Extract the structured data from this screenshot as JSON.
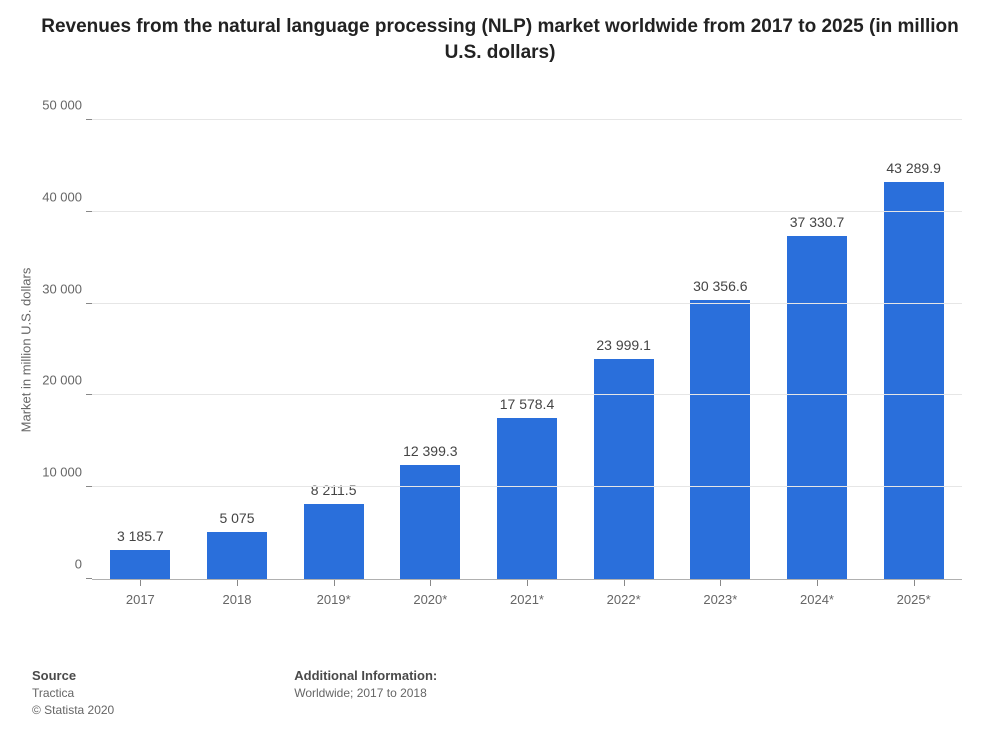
{
  "chart": {
    "type": "bar",
    "title": "Revenues from the natural language processing (NLP) market worldwide from 2017 to 2025 (in million U.S. dollars)",
    "title_fontsize": 19,
    "title_color": "#222222",
    "background_color": "#ffffff",
    "grid_color": "#e6e6e6",
    "axis_color": "#888888",
    "tick_label_color": "#666666",
    "tick_label_fontsize": 13,
    "value_label_color": "#444444",
    "value_label_fontsize": 14,
    "y_axis_title": "Market in million U.S. dollars",
    "y_axis_title_fontsize": 13,
    "ylim": [
      0,
      50000
    ],
    "ytick_step": 10000,
    "y_ticks": [
      {
        "value": 0,
        "label": "0"
      },
      {
        "value": 10000,
        "label": "10 000"
      },
      {
        "value": 20000,
        "label": "20 000"
      },
      {
        "value": 30000,
        "label": "30 000"
      },
      {
        "value": 40000,
        "label": "40 000"
      },
      {
        "value": 50000,
        "label": "50 000"
      }
    ],
    "bar_color": "#2a6fdb",
    "bar_width_ratio": 0.62,
    "categories": [
      "2017",
      "2018",
      "2019*",
      "2020*",
      "2021*",
      "2022*",
      "2023*",
      "2024*",
      "2025*"
    ],
    "values": [
      3185.7,
      5075,
      8211.5,
      12399.3,
      17578.4,
      23999.1,
      30356.6,
      37330.7,
      43289.9
    ],
    "value_labels": [
      "3 185.7",
      "5 075",
      "8 211.5",
      "12 399.3",
      "17 578.4",
      "23 999.1",
      "30 356.6",
      "37 330.7",
      "43 289.9"
    ]
  },
  "footer": {
    "source_heading": "Source",
    "source_name": "Tractica",
    "copyright": "© Statista 2020",
    "additional_heading": "Additional Information:",
    "additional_text": "Worldwide; 2017 to 2018",
    "heading_fontsize": 13,
    "text_fontsize": 12,
    "heading_color": "#4a4a4a",
    "text_color": "#666666"
  }
}
